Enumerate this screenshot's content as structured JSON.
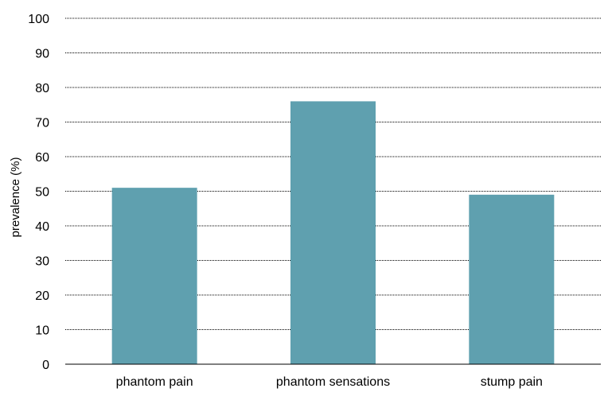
{
  "chart_data": {
    "type": "bar",
    "categories": [
      "phantom pain",
      "phantom sensations",
      "stump pain"
    ],
    "values": [
      51,
      76,
      49
    ],
    "title": "",
    "xlabel": "",
    "ylabel": "prevalence (%)",
    "ylim": [
      0,
      100
    ],
    "yticks": [
      0,
      10,
      20,
      30,
      40,
      50,
      60,
      70,
      80,
      90,
      100
    ],
    "grid": "horizontal dotted",
    "bar_color": "#5fa0af",
    "grid_color": "#000000"
  }
}
